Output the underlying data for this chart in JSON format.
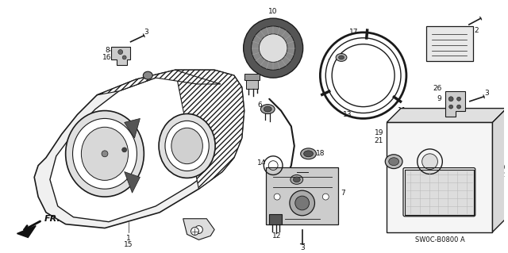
{
  "background_color": "#ffffff",
  "fig_width": 6.4,
  "fig_height": 3.19,
  "dpi": 100,
  "diagram_code": "SW0C-B0800 A",
  "fr_label": "FR.",
  "line_color": "#1a1a1a",
  "text_color": "#111111",
  "gray_fill": "#cccccc",
  "dark_fill": "#444444",
  "light_fill": "#e8e8e8",
  "mid_fill": "#999999"
}
